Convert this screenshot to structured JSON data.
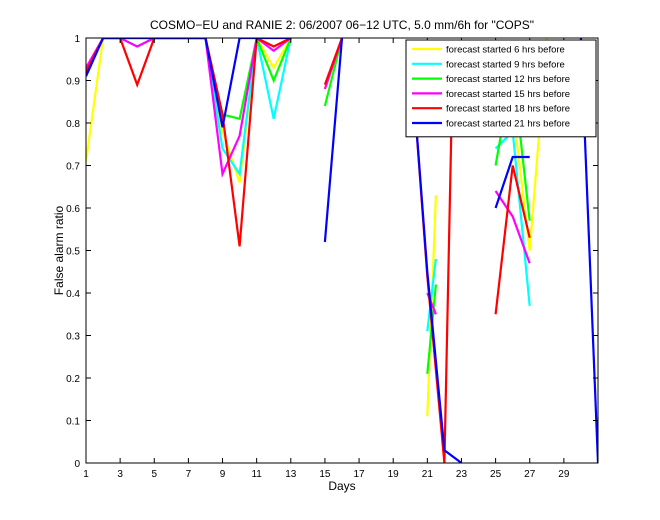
{
  "chart_data": {
    "type": "line",
    "title": "COSMO−EU and RANIE 2: 06/2007 06−12 UTC, 5.0 mm/6h for \"COPS\"",
    "xlabel": "Days",
    "ylabel": "False alarm ratio",
    "xlim": [
      1,
      31
    ],
    "ylim": [
      0,
      1
    ],
    "xticks": [
      1,
      3,
      5,
      7,
      9,
      11,
      13,
      15,
      17,
      19,
      21,
      23,
      25,
      27,
      29
    ],
    "xtick_labels": [
      "1",
      "3",
      "5",
      "7",
      "9",
      "11",
      "13",
      "15",
      "17",
      "19",
      "21",
      "23",
      "25",
      "27",
      "29"
    ],
    "yticks": [
      0,
      0.1,
      0.2,
      0.3,
      0.4,
      0.5,
      0.6,
      0.7,
      0.8,
      0.9,
      1
    ],
    "ytick_labels": [
      "0",
      "0.1",
      "0.2",
      "0.3",
      "0.4",
      "0.5",
      "0.6",
      "0.7",
      "0.8",
      "0.9",
      "1"
    ],
    "legend_position": "top-right",
    "grid": false,
    "series": [
      {
        "name": "forecast started 6 hrs before",
        "color": "#ffff00",
        "points": [
          [
            1,
            0.71
          ],
          [
            2,
            1
          ],
          [
            3,
            1
          ],
          [
            4,
            1
          ],
          [
            5,
            1
          ],
          [
            6,
            1
          ],
          [
            7,
            1
          ],
          [
            8,
            1
          ],
          [
            9,
            0.78
          ],
          [
            10,
            0.66
          ],
          [
            11,
            1
          ],
          [
            12,
            0.93
          ],
          [
            13,
            1
          ],
          null,
          [
            15,
            0.88
          ],
          [
            16,
            1
          ],
          null,
          [
            21,
            0.11
          ],
          [
            21.5,
            0.63
          ],
          null,
          [
            25,
            0.84
          ],
          [
            26,
            0.84
          ],
          [
            27,
            0.5
          ],
          [
            28,
            1
          ]
        ]
      },
      {
        "name": "forecast started 9 hrs before",
        "color": "#00ffff",
        "points": [
          [
            1,
            0.92
          ],
          [
            2,
            1
          ],
          [
            3,
            1
          ],
          [
            4,
            0.98
          ],
          [
            5,
            1
          ],
          [
            6,
            1
          ],
          [
            7,
            1
          ],
          [
            8,
            1
          ],
          [
            9,
            0.74
          ],
          [
            10,
            0.68
          ],
          [
            11,
            1
          ],
          [
            12,
            0.81
          ],
          [
            13,
            1
          ],
          null,
          [
            21,
            0.31
          ],
          [
            21.5,
            0.48
          ],
          null,
          [
            25,
            0.74
          ],
          [
            26,
            0.78
          ],
          [
            27,
            0.37
          ]
        ]
      },
      {
        "name": "forecast started 12 hrs before",
        "color": "#00ff00",
        "points": [
          [
            1,
            0.92
          ],
          [
            2,
            1
          ],
          [
            3,
            1
          ],
          [
            4,
            1
          ],
          [
            5,
            1
          ],
          [
            6,
            1
          ],
          [
            7,
            1
          ],
          [
            8,
            1
          ],
          [
            9,
            0.82
          ],
          [
            10,
            0.81
          ],
          [
            11,
            1
          ],
          [
            12,
            0.9
          ],
          [
            13,
            1
          ],
          null,
          [
            15,
            0.84
          ],
          [
            16,
            1
          ],
          null,
          [
            21,
            0.21
          ],
          [
            21.5,
            0.42
          ],
          null,
          [
            25,
            0.7
          ],
          [
            26,
            0.93
          ],
          [
            27,
            0.57
          ]
        ]
      },
      {
        "name": "forecast started 15 hrs before",
        "color": "#ff00ff",
        "points": [
          [
            1,
            0.93
          ],
          [
            2,
            1
          ],
          [
            3,
            1
          ],
          [
            4,
            0.98
          ],
          [
            5,
            1
          ],
          [
            6,
            1
          ],
          [
            7,
            1
          ],
          [
            8,
            1
          ],
          [
            9,
            0.68
          ],
          [
            10,
            0.77
          ],
          [
            11,
            1
          ],
          [
            12,
            0.97
          ],
          [
            13,
            1
          ],
          null,
          [
            15,
            0.88
          ],
          [
            16,
            1
          ],
          null,
          [
            21,
            0.4
          ],
          [
            21.5,
            0.35
          ],
          null,
          [
            25,
            0.64
          ],
          [
            26,
            0.58
          ],
          [
            27,
            0.47
          ]
        ]
      },
      {
        "name": "forecast started 18 hrs before",
        "color": "#ff0000",
        "points": [
          [
            1,
            0.92
          ],
          [
            2,
            1
          ],
          [
            3,
            1
          ],
          [
            4,
            0.89
          ],
          [
            5,
            1
          ],
          [
            6,
            1
          ],
          [
            7,
            1
          ],
          [
            8,
            1
          ],
          [
            9,
            0.82
          ],
          [
            10,
            0.51
          ],
          [
            11,
            1
          ],
          [
            12,
            0.98
          ],
          [
            13,
            1
          ],
          null,
          [
            15,
            0.89
          ],
          [
            16,
            1
          ],
          null,
          [
            20,
            0.98
          ],
          [
            21,
            0.44
          ],
          [
            22,
            0
          ],
          [
            22.5,
            0.96
          ],
          null,
          [
            25,
            0.35
          ],
          [
            26,
            0.7
          ],
          [
            27,
            0.53
          ]
        ]
      },
      {
        "name": "forecast started 21 hrs before",
        "color": "#0000ff",
        "points": [
          [
            1,
            0.91
          ],
          [
            2,
            1
          ],
          [
            3,
            1
          ],
          [
            4,
            1
          ],
          [
            5,
            1
          ],
          [
            6,
            1
          ],
          [
            7,
            1
          ],
          [
            8,
            1
          ],
          [
            9,
            0.79
          ],
          [
            10,
            1
          ],
          [
            11,
            1
          ],
          [
            12,
            1
          ],
          [
            13,
            1
          ],
          null,
          [
            15,
            0.52
          ],
          [
            16,
            1
          ],
          null,
          [
            20,
            0.98
          ],
          [
            21,
            0.45
          ],
          [
            22,
            0.03
          ],
          [
            23,
            0
          ],
          null,
          [
            25,
            0.6
          ],
          [
            26,
            0.72
          ],
          [
            27,
            0.72
          ],
          null,
          [
            30,
            1
          ],
          [
            31,
            0
          ]
        ]
      }
    ]
  }
}
